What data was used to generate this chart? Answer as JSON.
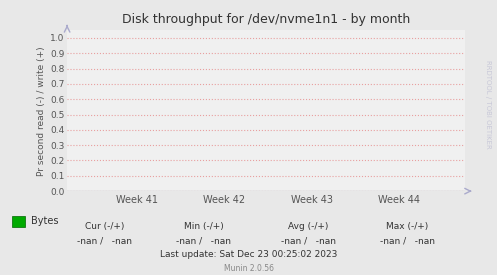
{
  "title": "Disk throughput for /dev/nvme1n1 - by month",
  "ylabel": "Pr second read (-) / write (+)",
  "yticks": [
    0.0,
    0.1,
    0.2,
    0.3,
    0.4,
    0.5,
    0.6,
    0.7,
    0.8,
    0.9,
    1.0
  ],
  "ylim": [
    0.0,
    1.05
  ],
  "xtick_labels": [
    "Week 41",
    "Week 42",
    "Week 43",
    "Week 44"
  ],
  "xtick_positions": [
    0.175,
    0.395,
    0.615,
    0.835
  ],
  "bg_color": "#e8e8e8",
  "plot_bg_color": "#f0f0f0",
  "grid_color": "#e8a0a0",
  "title_color": "#333333",
  "axis_color": "#555555",
  "tick_color": "#555555",
  "legend_label": "Bytes",
  "legend_color": "#00aa00",
  "cur_label": "Cur (-/+)",
  "min_label": "Min (-/+)",
  "avg_label": "Avg (-/+)",
  "max_label": "Max (-/+)",
  "cur_val": "-nan /   -nan",
  "min_val": "-nan /   -nan",
  "avg_val": "-nan /   -nan",
  "max_val": "-nan /   -nan",
  "last_update": "Last update: Sat Dec 23 00:25:02 2023",
  "munin_version": "Munin 2.0.56",
  "watermark": "RRDTOOL / TOBI OETIKER",
  "arrow_color": "#aaaacc",
  "line_color": "#555566"
}
